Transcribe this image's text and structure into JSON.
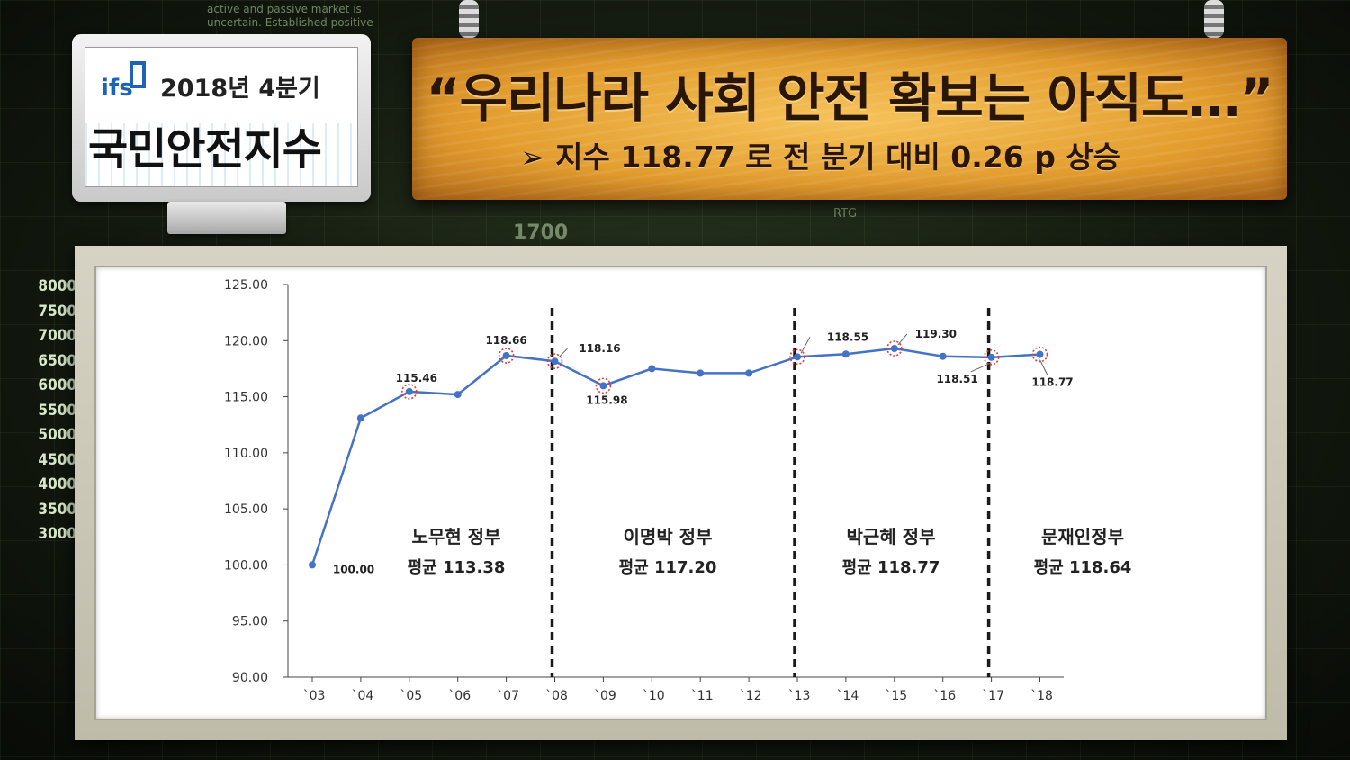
{
  "background": {
    "texts": [
      "active and passive market is",
      "uncertain. Established positive",
      "RTG",
      "1700"
    ]
  },
  "logo": {
    "brand": "ifs",
    "quarter": "2018년 4분기",
    "title": "국민안전지수"
  },
  "banner": {
    "title": "“우리나라 사회 안전 확보는 아직도…”",
    "subtitle": "➢  지수 118.77 로 전 분기 대비 0.26 p 상승"
  },
  "colors": {
    "line": "#4472c4",
    "highlight": "#e03a3a",
    "divider": "#1a1a1a"
  },
  "chart_data": {
    "type": "line",
    "categories": [
      "`03",
      "`04",
      "`05",
      "`06",
      "`07",
      "`08",
      "`09",
      "`10",
      "`11",
      "`12",
      "`13",
      "`14",
      "`15",
      "`16",
      "`17",
      "`18"
    ],
    "series": [
      {
        "values": [
          100.0,
          113.1,
          115.46,
          115.2,
          118.66,
          118.16,
          115.98,
          117.5,
          117.1,
          117.1,
          118.55,
          118.8,
          119.3,
          118.6,
          118.51,
          118.77
        ]
      }
    ],
    "ylim": [
      90,
      125
    ],
    "yticks": [
      "90.00",
      "95.00",
      "100.00",
      "105.00",
      "110.00",
      "115.00",
      "120.00",
      "125.00"
    ],
    "point_labels": [
      {
        "index": 0,
        "text": "100.00"
      },
      {
        "index": 2,
        "text": "115.46"
      },
      {
        "index": 4,
        "text": "118.66"
      },
      {
        "index": 5,
        "text": "118.16"
      },
      {
        "index": 6,
        "text": "115.98"
      },
      {
        "index": 10,
        "text": "118.55"
      },
      {
        "index": 12,
        "text": "119.30"
      },
      {
        "index": 14,
        "text": "118.51"
      },
      {
        "index": 15,
        "text": "118.77"
      }
    ],
    "highlighted_indices": [
      2,
      4,
      5,
      6,
      10,
      12,
      14,
      15
    ],
    "dividers_after_index": [
      5,
      10,
      14
    ],
    "periods": [
      {
        "name": "노무현 정부",
        "avg": "평균 113.38"
      },
      {
        "name": "이명박 정부",
        "avg": "평균 117.20"
      },
      {
        "name": "박근혜 정부",
        "avg": "평균 118.77"
      },
      {
        "name": "문재인정부",
        "avg": "평균 118.64"
      }
    ],
    "grid": false
  }
}
